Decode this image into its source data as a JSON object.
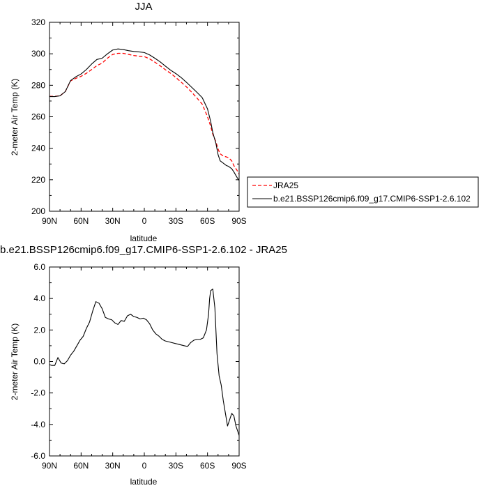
{
  "chart_data": [
    {
      "type": "line",
      "title": "JJA",
      "xlabel": "latitude",
      "ylabel": "2-meter Air Temp (K)",
      "xlim": [
        90,
        -90
      ],
      "ylim": [
        200,
        320
      ],
      "xticks": [
        "90N",
        "60N",
        "30N",
        "0",
        "30S",
        "60S",
        "90S"
      ],
      "yticks": [
        "200",
        "220",
        "240",
        "260",
        "280",
        "300",
        "320"
      ],
      "legend_position": "right",
      "series": [
        {
          "name": "JRA25",
          "color": "#ff0000",
          "dash": true,
          "x": [
            90,
            85,
            80,
            75,
            70,
            65,
            60,
            55,
            50,
            45,
            40,
            35,
            30,
            25,
            20,
            15,
            10,
            5,
            0,
            -5,
            -10,
            -15,
            -20,
            -25,
            -30,
            -35,
            -40,
            -45,
            -50,
            -55,
            -60,
            -63,
            -65,
            -68,
            -70,
            -72,
            -75,
            -78,
            -80,
            -83,
            -85,
            -88,
            -90
          ],
          "y": [
            273.0,
            273.0,
            273.3,
            276.0,
            282.8,
            284.4,
            285.7,
            287.6,
            290.0,
            292.5,
            294.1,
            297.2,
            299.6,
            300.3,
            300.3,
            299.6,
            298.9,
            298.5,
            298.2,
            296.8,
            294.7,
            292.4,
            289.9,
            287.6,
            284.9,
            282.0,
            279.0,
            275.6,
            271.9,
            268.0,
            260.0,
            254.0,
            249.0,
            244.0,
            239.5,
            236.5,
            235.0,
            234.5,
            234.0,
            232.0,
            229.0,
            226.0,
            223.5
          ]
        },
        {
          "name": "b.e21.BSSP126cmip6.f09_g17.CMIP6-SSP1-2.6.102",
          "color": "#000000",
          "dash": false,
          "x": [
            90,
            85,
            80,
            75,
            70,
            65,
            60,
            55,
            50,
            45,
            40,
            35,
            30,
            25,
            20,
            15,
            10,
            5,
            0,
            -5,
            -10,
            -15,
            -20,
            -25,
            -30,
            -35,
            -40,
            -45,
            -50,
            -55,
            -60,
            -63,
            -65,
            -68,
            -70,
            -72,
            -75,
            -78,
            -80,
            -83,
            -85,
            -88,
            -90
          ],
          "y": [
            272.8,
            272.8,
            273.3,
            276.0,
            283.0,
            285.4,
            287.2,
            290.0,
            293.5,
            296.4,
            297.2,
            300.0,
            302.4,
            303.1,
            302.7,
            302.0,
            301.5,
            301.2,
            300.8,
            299.3,
            297.2,
            294.9,
            292.2,
            289.6,
            287.4,
            284.9,
            281.9,
            278.7,
            275.5,
            272.1,
            265.0,
            257.0,
            250.0,
            243.0,
            236.0,
            232.0,
            230.5,
            229.0,
            228.5,
            227.0,
            225.0,
            221.5,
            219.5
          ]
        }
      ]
    },
    {
      "type": "line",
      "title": "b.e21.BSSP126cmip6.f09_g17.CMIP6-SSP1-2.6.102 - JRA25",
      "xlabel": "latitude",
      "ylabel": "2-meter Air Temp (K)",
      "xlim": [
        90,
        -90
      ],
      "ylim": [
        -6,
        6
      ],
      "xticks": [
        "90N",
        "60N",
        "30N",
        "0",
        "30S",
        "60S",
        "90S"
      ],
      "yticks": [
        "-6.0",
        "-4.0",
        "-2.0",
        "0.0",
        "2.0",
        "4.0",
        "6.0"
      ],
      "series": [
        {
          "color": "#000000",
          "x": [
            90,
            88,
            85,
            82,
            79,
            76,
            73,
            70,
            67,
            64,
            61,
            58,
            55,
            52,
            49,
            46,
            43,
            40,
            37,
            34,
            31,
            28,
            25,
            22,
            19,
            16,
            13,
            10,
            7,
            4,
            1,
            -2,
            -5,
            -8,
            -11,
            -14,
            -17,
            -20,
            -23,
            -26,
            -29,
            -32,
            -35,
            -38,
            -41,
            -44,
            -47,
            -50,
            -53,
            -56,
            -59,
            -61,
            -62,
            -63,
            -65,
            -67,
            -69,
            -71,
            -73,
            -75,
            -77,
            -79,
            -81,
            -83,
            -85,
            -87,
            -89,
            -90
          ],
          "y": [
            -0.2,
            -0.25,
            -0.25,
            0.25,
            -0.1,
            -0.15,
            0.05,
            0.4,
            0.65,
            1.0,
            1.35,
            1.6,
            2.1,
            2.5,
            3.2,
            3.8,
            3.7,
            3.35,
            2.8,
            2.7,
            2.65,
            2.45,
            2.35,
            2.6,
            2.55,
            2.9,
            3.0,
            2.85,
            2.8,
            2.7,
            2.75,
            2.65,
            2.4,
            2.0,
            1.75,
            1.6,
            1.4,
            1.3,
            1.25,
            1.2,
            1.15,
            1.1,
            1.05,
            1.0,
            0.95,
            1.2,
            1.35,
            1.4,
            1.4,
            1.5,
            2.0,
            3.0,
            4.0,
            4.5,
            4.6,
            3.4,
            0.5,
            -0.9,
            -1.5,
            -2.5,
            -3.3,
            -4.1,
            -3.7,
            -3.3,
            -3.45,
            -4.1,
            -4.5,
            -4.7
          ]
        }
      ]
    }
  ]
}
